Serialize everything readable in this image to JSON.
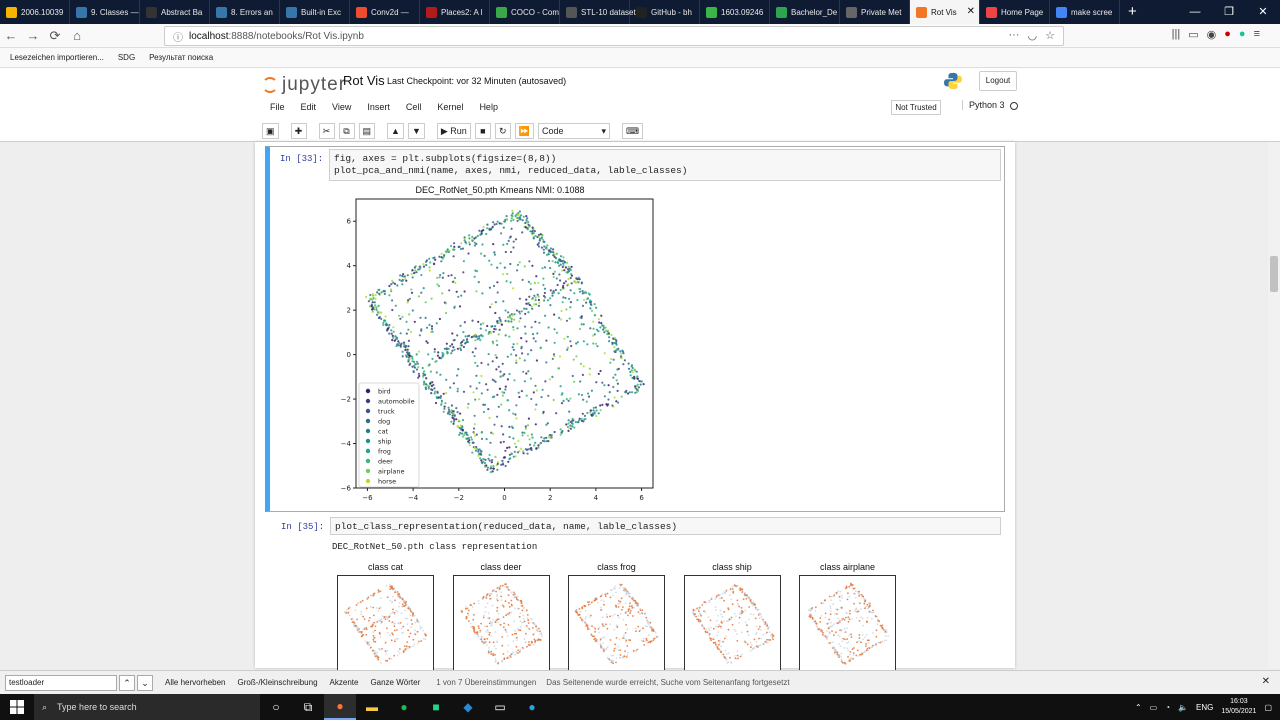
{
  "browser": {
    "tabs": [
      {
        "label": "2006.10039",
        "color": "#f7b500"
      },
      {
        "label": "9. Classes —",
        "color": "#3776ab"
      },
      {
        "label": "Abstract Ba",
        "color": "#333"
      },
      {
        "label": "8. Errors an",
        "color": "#3776ab"
      },
      {
        "label": "Built-in Exc",
        "color": "#3776ab"
      },
      {
        "label": "Conv2d —",
        "color": "#ee4c2c"
      },
      {
        "label": "Places2: A l",
        "color": "#b31b1b"
      },
      {
        "label": "COCO - Com",
        "color": "#3aa84a"
      },
      {
        "label": "STL-10 dataset",
        "color": "#555"
      },
      {
        "label": "GitHub - bh",
        "color": "#222"
      },
      {
        "label": "1603.09246",
        "color": "#3ab54a"
      },
      {
        "label": "Bachelor_De",
        "color": "#2da44e"
      },
      {
        "label": "Private Met",
        "color": "#666"
      },
      {
        "label": "Rot Vis",
        "color": "#f37626"
      },
      {
        "label": "Home Page",
        "color": "#e44"
      },
      {
        "label": "make scree",
        "color": "#4285f4"
      }
    ],
    "url_host": "localhost",
    "url_path": ":8888/notebooks/Rot Vis.ipynb",
    "bookmarks": [
      "Lesezeichen importieren...",
      "SDG",
      "Результат поиска"
    ]
  },
  "jupyter": {
    "logo_text": "jupyter",
    "notebook_title": "Rot Vis",
    "checkpoint": "Last Checkpoint: vor 32 Minuten  (autosaved)",
    "logout": "Logout",
    "menu": [
      "File",
      "Edit",
      "View",
      "Insert",
      "Cell",
      "Kernel",
      "Help"
    ],
    "not_trusted": "Not Trusted",
    "kernel": "Python 3",
    "toolbar_run": "Run",
    "cell_type": "Code"
  },
  "cells": {
    "cell1": {
      "prompt": "In [33]:",
      "line1": "fig, axes = plt.subplots(figsize=(8,8))",
      "line2": "plot_pca_and_nmi(name, axes, nmi, reduced_data, lable_classes)"
    },
    "cell2": {
      "prompt": "In [35]:",
      "line1": "plot_class_representation(reduced_data, name, lable_classes)",
      "output": "DEC_RotNet_50.pth class representation"
    }
  },
  "chart_data": {
    "type": "scatter",
    "title": "DEC_RotNet_50.pth Kmeans NMI: 0.1088",
    "xlim": [
      -6.5,
      6.5
    ],
    "ylim": [
      -6,
      7
    ],
    "xticks": [
      "−6",
      "−4",
      "−2",
      "0",
      "2",
      "4",
      "6"
    ],
    "yticks": [
      "−6",
      "−4",
      "−2",
      "0",
      "2",
      "4",
      "6"
    ],
    "legend_position": "lower-left",
    "legend": [
      {
        "name": "bird",
        "color": "#3b1c6b"
      },
      {
        "name": "automobile",
        "color": "#443a83"
      },
      {
        "name": "truck",
        "color": "#3b528b"
      },
      {
        "name": "dog",
        "color": "#31688e"
      },
      {
        "name": "cat",
        "color": "#287d8e"
      },
      {
        "name": "ship",
        "color": "#21918c"
      },
      {
        "name": "frog",
        "color": "#20a486"
      },
      {
        "name": "deer",
        "color": "#35b779"
      },
      {
        "name": "airplane",
        "color": "#6ece58"
      },
      {
        "name": "horse",
        "color": "#b5de2b"
      }
    ],
    "corners": [
      [
        0.5,
        6.4
      ],
      [
        3.1,
        3.4
      ],
      [
        6.0,
        -1.4
      ],
      [
        -0.6,
        -5.2
      ],
      [
        -6.0,
        2.5
      ]
    ],
    "mid": [
      -3.5,
      -0.5
    ],
    "class_panels": [
      {
        "title": "class cat",
        "color": "#e8793a"
      },
      {
        "title": "class deer",
        "color": "#e8793a"
      },
      {
        "title": "class frog",
        "color": "#e8793a"
      },
      {
        "title": "class ship",
        "color": "#e8793a"
      },
      {
        "title": "class airplane",
        "color": "#e8793a"
      }
    ]
  },
  "findbar": {
    "query": "testloader",
    "highlight_all": "Alle hervorheben",
    "match_case": "Groß-/Kleinschreibung",
    "accents": "Akzente",
    "whole_words": "Ganze Wörter",
    "count": "1 von 7 Übereinstimmungen",
    "status": "Das Seitenende wurde erreicht, Suche vom Seitenanfang fortgesetzt"
  },
  "taskbar": {
    "search_placeholder": "Type here to search",
    "lang": "ENG",
    "time": "16:03",
    "date": "15/05/2021"
  }
}
